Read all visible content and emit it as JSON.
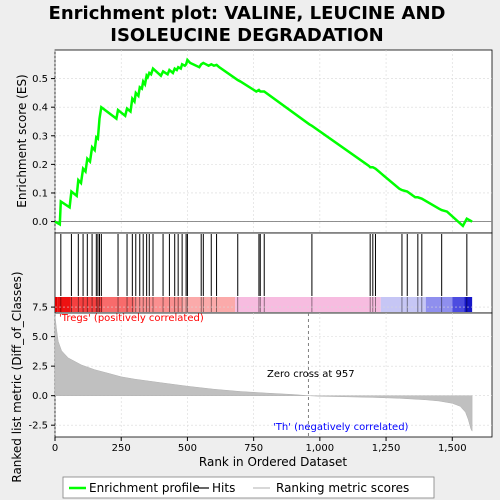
{
  "title_line1": "Enrichment plot: VALINE, LEUCINE AND",
  "title_line2": "ISOLEUCINE DEGRADATION",
  "colors": {
    "enrichment": "#00ff00",
    "hits": "#000000",
    "metric_fill": "#c0c0c0",
    "positive_label": "#ff0000",
    "negative_label": "#0000ff",
    "zero_line": "#808080"
  },
  "chart_data": [
    {
      "type": "line",
      "name": "enrichment-score-plot",
      "ylabel": "Enrichment score (ES)",
      "xlim": [
        0,
        1650
      ],
      "ylim": [
        -0.04,
        0.6
      ],
      "yticks": [
        "0.0",
        "0.1",
        "0.2",
        "0.3",
        "0.4",
        "0.5"
      ],
      "ytick_values": [
        0.0,
        0.1,
        0.2,
        0.3,
        0.4,
        0.5
      ],
      "grid": true,
      "series": [
        {
          "name": "Enrichment profile",
          "x": [
            0,
            18,
            22,
            55,
            62,
            82,
            88,
            98,
            106,
            115,
            122,
            132,
            140,
            150,
            156,
            162,
            168,
            175,
            232,
            238,
            265,
            272,
            285,
            292,
            300,
            305,
            315,
            320,
            328,
            333,
            340,
            346,
            350,
            356,
            363,
            370,
            400,
            408,
            425,
            432,
            445,
            452,
            460,
            465,
            475,
            480,
            490,
            495,
            500,
            510,
            545,
            552,
            560,
            570,
            580,
            590,
            600,
            610,
            620,
            690,
            700,
            760,
            770,
            775,
            790,
            960,
            970,
            1185,
            1190,
            1200,
            1210,
            1300,
            1310,
            1330,
            1360,
            1370,
            1385,
            1450,
            1460,
            1480,
            1540,
            1555,
            1575
          ],
          "y": [
            0.0,
            -0.01,
            0.07,
            0.05,
            0.105,
            0.09,
            0.145,
            0.135,
            0.185,
            0.175,
            0.22,
            0.21,
            0.26,
            0.25,
            0.295,
            0.29,
            0.36,
            0.4,
            0.36,
            0.39,
            0.37,
            0.395,
            0.385,
            0.43,
            0.42,
            0.45,
            0.44,
            0.47,
            0.465,
            0.49,
            0.48,
            0.51,
            0.505,
            0.52,
            0.515,
            0.535,
            0.51,
            0.525,
            0.515,
            0.53,
            0.52,
            0.535,
            0.53,
            0.54,
            0.535,
            0.55,
            0.545,
            0.55,
            0.565,
            0.555,
            0.54,
            0.55,
            0.555,
            0.55,
            0.545,
            0.55,
            0.545,
            0.548,
            0.54,
            0.495,
            0.49,
            0.455,
            0.46,
            0.455,
            0.455,
            0.34,
            0.335,
            0.195,
            0.19,
            0.19,
            0.185,
            0.115,
            0.11,
            0.105,
            0.085,
            0.085,
            0.08,
            0.045,
            0.04,
            0.035,
            -0.015,
            0.01,
            0.0
          ]
        }
      ]
    },
    {
      "type": "scatter",
      "name": "hits-strip",
      "series": [
        {
          "name": "Hits",
          "x": [
            22,
            62,
            88,
            106,
            122,
            140,
            156,
            162,
            168,
            175,
            238,
            272,
            292,
            305,
            320,
            333,
            346,
            356,
            370,
            408,
            432,
            452,
            465,
            480,
            495,
            500,
            552,
            560,
            590,
            610,
            690,
            770,
            775,
            790,
            970,
            1190,
            1200,
            1210,
            1310,
            1330,
            1370,
            1385,
            1460,
            1555
          ]
        }
      ]
    },
    {
      "type": "area",
      "name": "ranked-list-metric-plot",
      "xlabel": "Rank in Ordered Dataset",
      "ylabel": "Ranked list metric (Diff_of_Classes)",
      "xlim": [
        0,
        1650
      ],
      "ylim": [
        -3.5,
        7.0
      ],
      "xticks": [
        "0",
        "250",
        "500",
        "750",
        "1,000",
        "1,250",
        "1,500"
      ],
      "xtick_values": [
        0,
        250,
        500,
        750,
        1000,
        1250,
        1500
      ],
      "yticks": [
        "-2.5",
        "0.0",
        "2.5",
        "5.0",
        "7.5"
      ],
      "ytick_values": [
        -2.5,
        0.0,
        2.5,
        5.0,
        7.5
      ],
      "grid": true,
      "series": [
        {
          "name": "Ranking metric scores",
          "x": [
            0,
            5,
            12,
            25,
            50,
            100,
            150,
            200,
            250,
            300,
            400,
            500,
            600,
            700,
            800,
            900,
            957,
            1000,
            1100,
            1200,
            1300,
            1400,
            1450,
            1500,
            1530,
            1550,
            1560,
            1570,
            1575
          ],
          "y": [
            6.8,
            5.8,
            4.6,
            3.8,
            3.2,
            2.6,
            2.2,
            1.9,
            1.6,
            1.4,
            1.1,
            0.8,
            0.55,
            0.35,
            0.22,
            0.1,
            0.0,
            -0.05,
            -0.1,
            -0.15,
            -0.22,
            -0.35,
            -0.45,
            -0.65,
            -0.9,
            -1.4,
            -2.0,
            -2.8,
            -3.0
          ]
        }
      ],
      "annotations": {
        "positive": "'Tregs' (positively correlated)",
        "negative": "'Th' (negatively correlated)",
        "zero_cross": "Zero cross at 957",
        "zero_cross_x": 957
      }
    }
  ],
  "legend": [
    {
      "label": "Enrichment profile",
      "color": "#00ff00"
    },
    {
      "label": "Hits",
      "color": "#000000"
    },
    {
      "label": "Ranking metric scores",
      "color": "#c0c0c0"
    }
  ]
}
